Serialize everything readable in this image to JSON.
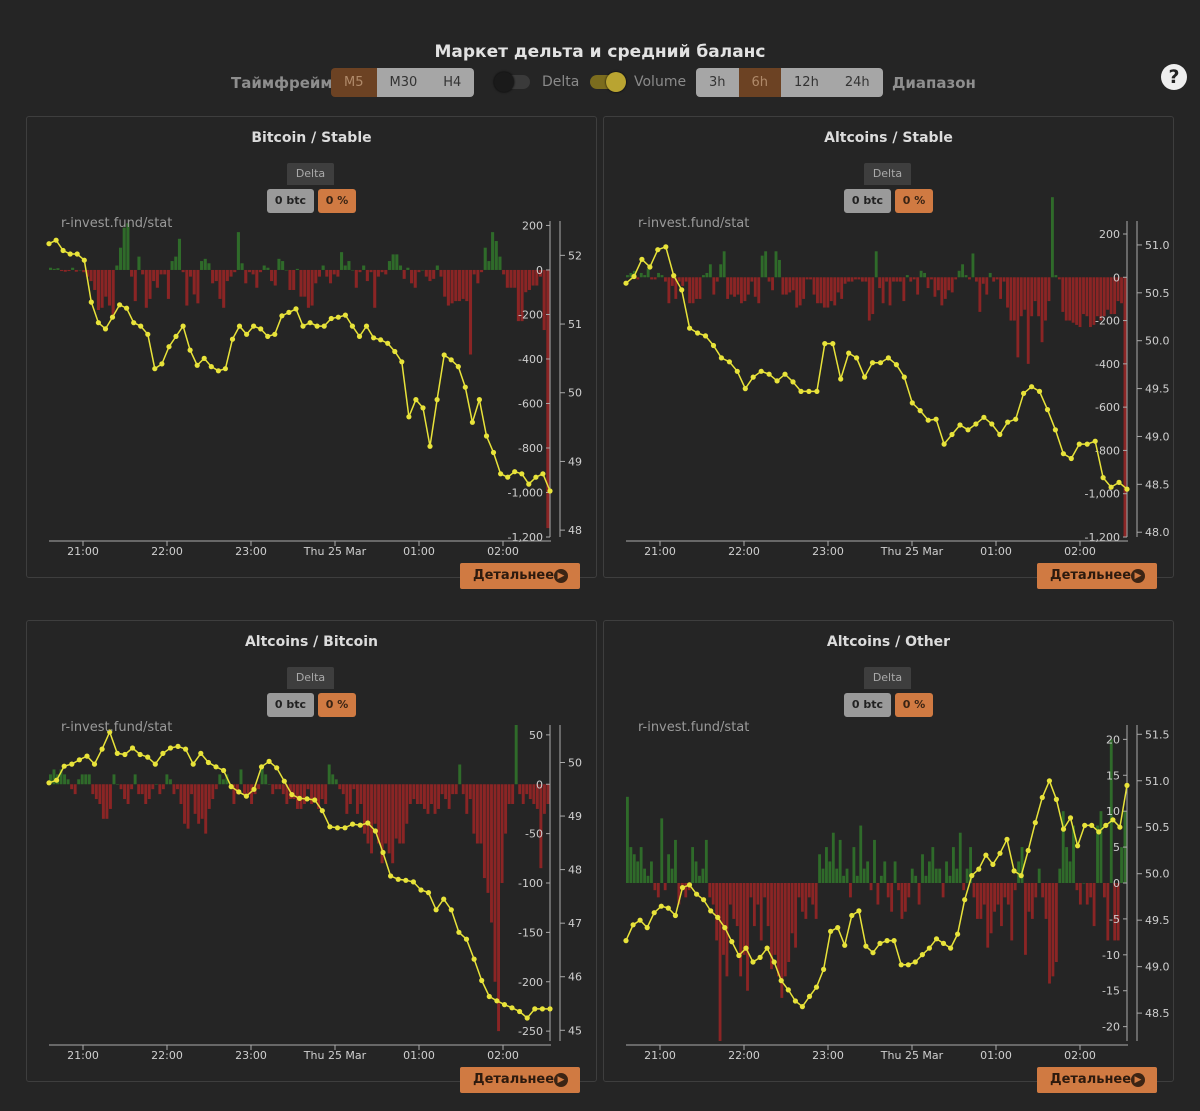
{
  "page_title": "Маркет дельта и средний баланс",
  "controls": {
    "timeframe_label": "Таймфрейм",
    "timeframes": [
      "M5",
      "M30",
      "H4"
    ],
    "timeframe_active": 0,
    "toggles": [
      {
        "label": "Delta",
        "on": false
      },
      {
        "label": "Volume",
        "on": true
      }
    ],
    "ranges": [
      "3h",
      "6h",
      "12h",
      "24h"
    ],
    "range_active": 1,
    "range_label": "Диапазон",
    "help_icon": "?"
  },
  "colors": {
    "positive_bar": "#2f6b2a",
    "negative_bar": "#8b2525",
    "balance_line": "#e8e33a",
    "accent": "#d07a42"
  },
  "x_ticks": [
    "21:00",
    "22:00",
    "23:00",
    "Thu 25 Mar",
    "01:00",
    "02:00"
  ],
  "panels": [
    {
      "title": "Bitcoin / Stable",
      "tab": "Delta",
      "btc": "0 btc",
      "pct": "0 %",
      "watermark": "r-invest.fund/stat",
      "more": "Детальнее",
      "chart_data": {
        "type": "bar+line",
        "delta_ticks": [
          "200",
          "0",
          "-200",
          "-400",
          "-600",
          "-800",
          "-1,000",
          "-1,200"
        ],
        "delta_range": [
          -1200,
          220
        ],
        "balance_ticks": [
          "52",
          "51",
          "50",
          "49",
          "48"
        ],
        "balance_range": [
          47.9,
          52.5
        ],
        "delta": [
          10,
          5,
          8,
          -5,
          -8,
          -5,
          10,
          -8,
          0,
          -10,
          -30,
          -50,
          -90,
          -180,
          -170,
          -120,
          -160,
          -210,
          20,
          100,
          190,
          210,
          -30,
          -140,
          60,
          -20,
          -170,
          -130,
          -50,
          -80,
          -20,
          -20,
          -130,
          40,
          60,
          140,
          -10,
          -160,
          -30,
          -110,
          -150,
          40,
          50,
          30,
          -60,
          -50,
          -130,
          -170,
          -50,
          -30,
          -10,
          170,
          30,
          -60,
          -10,
          -20,
          -80,
          -10,
          20,
          10,
          -50,
          -70,
          50,
          40,
          0,
          -90,
          -90,
          5,
          -120,
          -120,
          -170,
          -160,
          -60,
          -30,
          20,
          -30,
          -60,
          -20,
          -30,
          80,
          20,
          40,
          0,
          -80,
          -10,
          20,
          -50,
          -10,
          -170,
          -30,
          -10,
          -20,
          40,
          70,
          70,
          20,
          -40,
          10,
          -60,
          -80,
          -10,
          0,
          -30,
          -50,
          -40,
          20,
          -30,
          -120,
          -160,
          -150,
          -140,
          -140,
          -130,
          -140,
          -380,
          -20,
          -60,
          -10,
          100,
          40,
          170,
          130,
          60,
          -20,
          -80,
          -80,
          -80,
          -230,
          -230,
          -100,
          -90,
          -70,
          -70,
          -30,
          -270,
          -1160
        ],
        "balance": [
          52.17,
          52.22,
          52.07,
          52.02,
          52.02,
          51.93,
          51.32,
          51.02,
          50.93,
          51.1,
          51.28,
          51.23,
          51.02,
          50.97,
          50.85,
          50.35,
          50.42,
          50.67,
          50.82,
          50.97,
          50.62,
          50.4,
          50.5,
          50.38,
          50.32,
          50.35,
          50.78,
          50.97,
          50.85,
          50.97,
          50.93,
          50.82,
          50.85,
          51.12,
          51.17,
          51.22,
          50.97,
          51.02,
          50.97,
          50.97,
          51.08,
          51.1,
          51.13,
          50.97,
          50.82,
          50.97,
          50.8,
          50.77,
          50.72,
          50.6,
          50.45,
          49.65,
          49.9,
          49.78,
          49.22,
          49.9,
          50.55,
          50.48,
          50.38,
          50.08,
          49.57,
          49.9,
          49.37,
          49.13,
          48.82,
          48.77,
          48.85,
          48.82,
          48.67,
          48.77,
          48.82,
          48.57
        ]
      }
    },
    {
      "title": "Altcoins / Stable",
      "tab": "Delta",
      "btc": "0 btc",
      "pct": "0 %",
      "watermark": "r-invest.fund/stat",
      "more": "Детальнее",
      "chart_data": {
        "type": "bar+line",
        "delta_ticks": [
          "200",
          "0",
          "-200",
          "-400",
          "-600",
          "-800",
          "-1,000",
          "-1,200"
        ],
        "delta_range": [
          -1200,
          260
        ],
        "balance_ticks": [
          "51.0",
          "50.5",
          "50.0",
          "49.5",
          "49.0",
          "48.5",
          "48.0"
        ],
        "balance_range": [
          47.95,
          51.25
        ],
        "delta": [
          10,
          20,
          30,
          -10,
          20,
          10,
          40,
          -10,
          -10,
          20,
          10,
          -20,
          -120,
          -40,
          -100,
          -20,
          -40,
          -20,
          -120,
          -120,
          -100,
          -100,
          10,
          20,
          60,
          -80,
          -20,
          60,
          120,
          -100,
          -80,
          -90,
          -80,
          -120,
          -110,
          -80,
          -20,
          -90,
          -120,
          100,
          120,
          -20,
          -60,
          120,
          80,
          -80,
          -80,
          -70,
          -60,
          -140,
          -130,
          -100,
          -10,
          -10,
          -80,
          -120,
          -120,
          -140,
          -140,
          -110,
          -130,
          -70,
          -100,
          -30,
          -20,
          -20,
          -10,
          -10,
          -20,
          -20,
          -200,
          -170,
          120,
          -50,
          -120,
          -20,
          -130,
          -20,
          -20,
          -20,
          -110,
          10,
          -20,
          -10,
          -80,
          30,
          20,
          -50,
          -10,
          -90,
          -60,
          -130,
          -100,
          -60,
          -70,
          -10,
          30,
          60,
          10,
          -10,
          110,
          -20,
          -160,
          -30,
          -80,
          20,
          -20,
          -10,
          -100,
          -20,
          -140,
          -200,
          -200,
          -370,
          -180,
          -150,
          -400,
          -180,
          -110,
          -180,
          -300,
          -200,
          -110,
          370,
          10,
          -10,
          -160,
          -200,
          -200,
          -210,
          -220,
          -230,
          -170,
          -180,
          -230,
          -220,
          -180,
          -200,
          -180,
          -150,
          -170,
          -170,
          -110,
          -120,
          -1200
        ],
        "balance": [
          50.6,
          50.67,
          50.85,
          50.77,
          50.95,
          50.98,
          50.68,
          50.53,
          50.13,
          50.08,
          50.05,
          49.95,
          49.82,
          49.78,
          49.68,
          49.5,
          49.62,
          49.68,
          49.65,
          49.58,
          49.65,
          49.57,
          49.47,
          49.47,
          49.47,
          49.97,
          49.97,
          49.6,
          49.87,
          49.82,
          49.62,
          49.77,
          49.77,
          49.82,
          49.75,
          49.62,
          49.35,
          49.27,
          49.17,
          49.18,
          48.92,
          49.02,
          49.12,
          49.07,
          49.13,
          49.2,
          49.13,
          49.02,
          49.15,
          49.18,
          49.45,
          49.52,
          49.47,
          49.28,
          49.07,
          48.82,
          48.77,
          48.92,
          48.92,
          48.95,
          48.57,
          48.47,
          48.52,
          48.45
        ]
      }
    },
    {
      "title": "Altcoins / Bitcoin",
      "tab": "Delta",
      "btc": "0 btc",
      "pct": "0 %",
      "watermark": "r-invest.fund/stat",
      "more": "Детальнее",
      "chart_data": {
        "type": "bar+line",
        "delta_ticks": [
          "50",
          "0",
          "-50",
          "-100",
          "-150",
          "-200",
          "-250"
        ],
        "delta_range": [
          -260,
          60
        ],
        "balance_ticks": [
          "50",
          "49",
          "48",
          "47",
          "46",
          "45"
        ],
        "balance_range": [
          44.8,
          50.7
        ],
        "delta": [
          10,
          15,
          10,
          15,
          10,
          5,
          -5,
          -10,
          5,
          10,
          10,
          10,
          -10,
          -15,
          -20,
          -35,
          -35,
          -25,
          10,
          0,
          -5,
          -15,
          -20,
          -5,
          10,
          -10,
          -10,
          -20,
          -15,
          -5,
          0,
          -10,
          -5,
          10,
          5,
          -10,
          -5,
          -20,
          -40,
          -45,
          -10,
          -30,
          -40,
          -35,
          -50,
          -25,
          -15,
          -5,
          10,
          5,
          10,
          0,
          -20,
          -10,
          15,
          -10,
          -10,
          -20,
          -10,
          -5,
          20,
          10,
          0,
          -10,
          -5,
          -5,
          -10,
          -20,
          -15,
          -15,
          -25,
          -25,
          -20,
          -5,
          -20,
          -15,
          -25,
          -15,
          -20,
          20,
          10,
          5,
          -5,
          -10,
          -30,
          -20,
          -5,
          -30,
          -20,
          -50,
          -60,
          -70,
          -40,
          -60,
          -80,
          -60,
          -70,
          -80,
          -55,
          -60,
          -60,
          -40,
          -20,
          -15,
          -20,
          -20,
          -25,
          -30,
          -20,
          -30,
          -25,
          -10,
          -15,
          -25,
          -10,
          -10,
          20,
          -10,
          -30,
          -15,
          -50,
          -60,
          -60,
          -95,
          -110,
          -140,
          -200,
          -250,
          -100,
          -50,
          -20,
          -20,
          60,
          -10,
          -20,
          -10,
          -15,
          -20,
          -25,
          -85,
          -30,
          -20
        ],
        "balance": [
          49.62,
          49.67,
          49.93,
          49.97,
          50.05,
          50.12,
          49.97,
          50.25,
          50.57,
          50.17,
          50.15,
          50.27,
          50.15,
          50.1,
          49.97,
          50.17,
          50.27,
          50.3,
          50.25,
          49.97,
          50.17,
          50.0,
          49.92,
          49.85,
          49.55,
          49.45,
          49.37,
          49.5,
          49.92,
          50.02,
          49.9,
          49.65,
          49.4,
          49.33,
          49.32,
          49.3,
          49.1,
          48.8,
          48.78,
          48.78,
          48.85,
          48.83,
          48.87,
          48.72,
          48.32,
          47.88,
          47.82,
          47.8,
          47.77,
          47.62,
          47.57,
          47.25,
          47.45,
          47.25,
          46.83,
          46.7,
          46.33,
          45.93,
          45.63,
          45.55,
          45.48,
          45.42,
          45.35,
          45.23,
          45.4,
          45.4,
          45.4
        ]
      }
    },
    {
      "title": "Altcoins / Other",
      "tab": "Delta",
      "btc": "0 btc",
      "pct": "0 %",
      "watermark": "r-invest.fund/stat",
      "more": "Детальнее",
      "chart_data": {
        "type": "bar+line",
        "delta_ticks": [
          "20",
          "15",
          "10",
          "5",
          "0",
          "-5",
          "-10",
          "-15",
          "-20"
        ],
        "delta_range": [
          -22,
          22
        ],
        "balance_ticks": [
          "51.5",
          "51.0",
          "50.5",
          "50.0",
          "49.5",
          "49.0",
          "48.5"
        ],
        "balance_range": [
          48.2,
          51.6
        ],
        "delta": [
          12,
          5,
          4,
          3,
          5,
          2,
          1,
          3,
          -1,
          -2,
          9,
          -1,
          4,
          2,
          6,
          -3,
          -1,
          -2,
          -1,
          5,
          3,
          1,
          2,
          6,
          -2,
          -3,
          -8,
          -22,
          -10,
          -13,
          -3,
          -5,
          -6,
          -13,
          -10,
          -15,
          -2,
          -6,
          -3,
          -8,
          -2,
          -6,
          -12,
          -10,
          -13,
          -16,
          -13,
          -11,
          -7,
          -9,
          -2,
          -4,
          -5,
          -2,
          -3,
          -5,
          4,
          2,
          5,
          3,
          7,
          2,
          6,
          1,
          2,
          -2,
          5,
          1,
          8,
          2,
          3,
          -1,
          6,
          -3,
          1,
          3,
          -2,
          -4,
          3,
          -1,
          -5,
          -4,
          -2,
          2,
          1,
          -3,
          4,
          1,
          3,
          5,
          2,
          2,
          -2,
          3,
          1,
          5,
          2,
          7,
          -1,
          2,
          5,
          -2,
          -5,
          -5,
          -3,
          -9,
          -7,
          -4,
          -3,
          -6,
          -2,
          -3,
          -8,
          -1,
          3,
          5,
          -10,
          -4,
          -5,
          -2,
          2,
          -2,
          -5,
          -14,
          -13,
          -11,
          2,
          10,
          5,
          3,
          8,
          -1,
          -3,
          0,
          -3,
          -2,
          -6,
          8,
          10,
          -2,
          -8,
          20,
          -8,
          -8,
          5,
          10
        ],
        "balance": [
          49.28,
          49.45,
          49.5,
          49.42,
          49.58,
          49.65,
          49.63,
          49.55,
          49.85,
          49.88,
          49.78,
          49.72,
          49.6,
          49.53,
          49.42,
          49.27,
          49.12,
          49.2,
          49.05,
          49.1,
          49.2,
          49.05,
          48.85,
          48.75,
          48.63,
          48.57,
          48.68,
          48.78,
          48.97,
          49.38,
          49.42,
          49.23,
          49.55,
          49.6,
          49.22,
          49.15,
          49.25,
          49.28,
          49.28,
          49.02,
          49.02,
          49.05,
          49.13,
          49.2,
          49.3,
          49.25,
          49.2,
          49.35,
          49.72,
          49.98,
          50.05,
          50.2,
          50.1,
          50.22,
          50.37,
          50.03,
          49.98,
          50.25,
          50.55,
          50.82,
          51.0,
          50.8,
          50.48,
          50.6,
          50.3,
          50.52,
          50.52,
          50.45,
          50.52,
          50.58,
          50.5,
          50.95
        ]
      }
    }
  ]
}
